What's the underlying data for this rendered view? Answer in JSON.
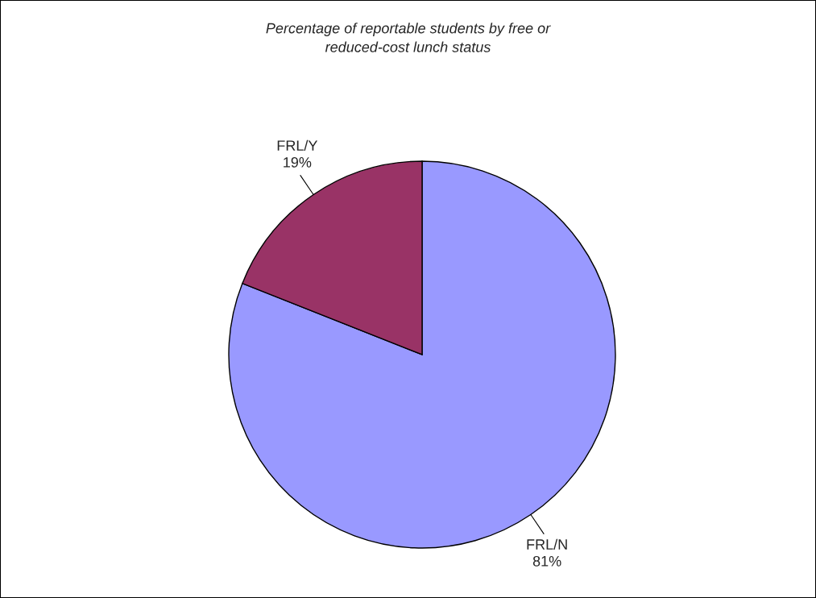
{
  "chart_data": {
    "type": "pie",
    "title": "Percentage of reportable students by free or\nreduced-cost lunch status",
    "categories": [
      "FRL/N",
      "FRL/Y"
    ],
    "values": [
      81,
      19
    ],
    "colors": [
      "#9999ff",
      "#993366"
    ],
    "value_labels": [
      "81%",
      "19%"
    ]
  }
}
